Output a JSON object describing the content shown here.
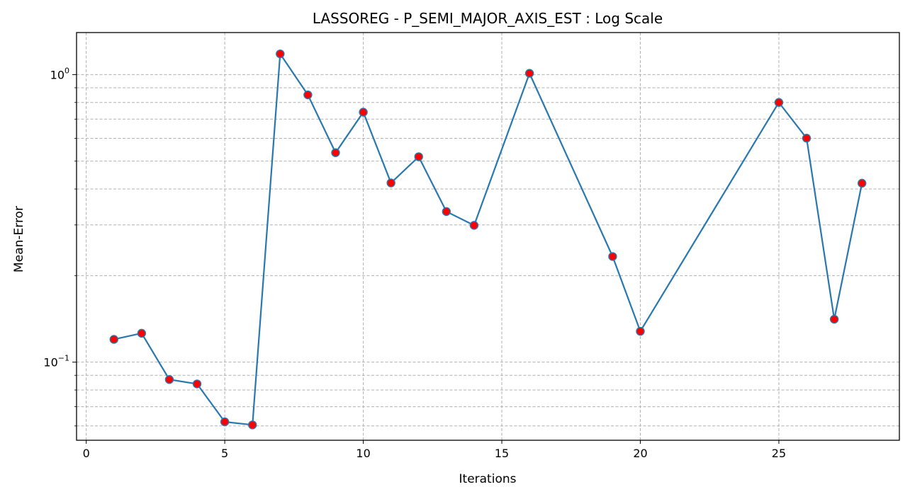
{
  "chart_data": {
    "type": "line",
    "title": "LASSOREG - P_SEMI_MAJOR_AXIS_EST : Log Scale",
    "xlabel": "Iterations",
    "ylabel": "Mean-Error",
    "y_scale": "log",
    "xlim": [
      -0.35,
      29.35
    ],
    "ylim": [
      0.0535,
      1.4
    ],
    "grid": true,
    "x_ticks": [
      0,
      5,
      10,
      15,
      20,
      25
    ],
    "x_tick_labels": [
      "0",
      "5",
      "10",
      "15",
      "20",
      "25"
    ],
    "y_major_ticks": [
      {
        "value": 0.1,
        "base": "10",
        "exponent": "−1"
      },
      {
        "value": 1,
        "base": "10",
        "exponent": "0"
      }
    ],
    "y_minor_ticks": [
      0.06,
      0.07,
      0.08,
      0.09,
      0.2,
      0.3,
      0.4,
      0.5,
      0.6,
      0.7,
      0.8,
      0.9
    ],
    "series": [
      {
        "line_color": "#2878b0",
        "marker_face_color": "#ff0000",
        "marker_edge_color": "#2878b0",
        "x": [
          1,
          2,
          3,
          4,
          5,
          6,
          7,
          8,
          9,
          10,
          11,
          12,
          13,
          14,
          16,
          19,
          20,
          25,
          26,
          27,
          28
        ],
        "y": [
          0.12,
          0.126,
          0.087,
          0.084,
          0.062,
          0.0605,
          1.18,
          0.85,
          0.535,
          0.74,
          0.42,
          0.518,
          0.334,
          0.299,
          1.01,
          0.233,
          0.128,
          0.8,
          0.601,
          0.141,
          0.419
        ]
      }
    ]
  }
}
